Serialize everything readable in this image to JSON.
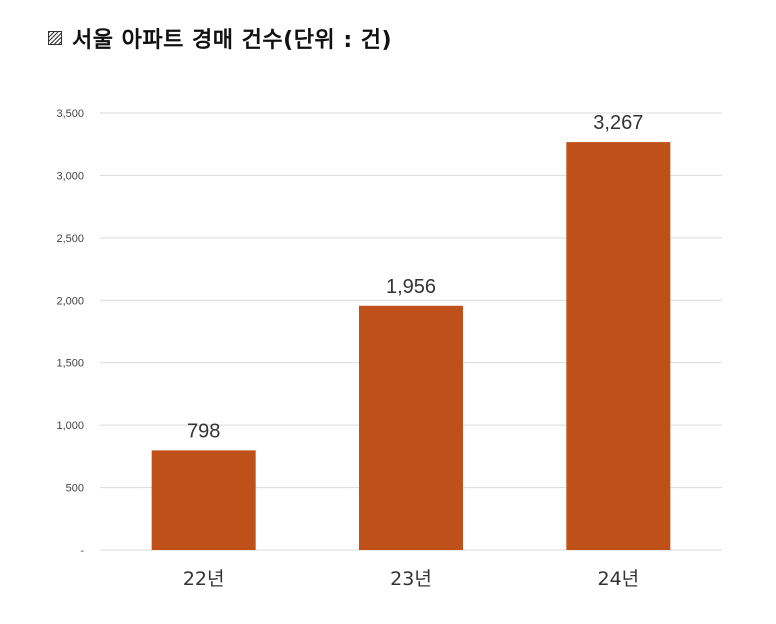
{
  "title": "서울 아파트 경매 건수(단위 : 건)",
  "chart_data": {
    "type": "bar",
    "title": "서울 아파트 경매 건수(단위 : 건)",
    "categories": [
      "22년",
      "23년",
      "24년"
    ],
    "values": [
      798,
      1956,
      3267
    ],
    "data_labels": [
      "798",
      "1,956",
      "3,267"
    ],
    "y_ticks": [
      0,
      500,
      1000,
      1500,
      2000,
      2500,
      3000,
      3500
    ],
    "y_tick_labels": [
      "-",
      "500",
      "1,000",
      "1,500",
      "2,000",
      "2,500",
      "3,000",
      "3,500"
    ],
    "ylim": [
      0,
      3500
    ],
    "xlabel": "",
    "ylabel": "",
    "grid": true,
    "legend": "none",
    "bar_color": "#C0501A",
    "grid_color": "#D9D9D9"
  }
}
